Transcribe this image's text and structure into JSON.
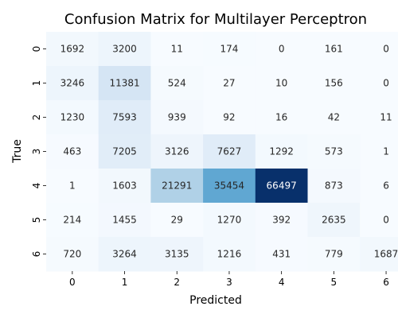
{
  "chart_data": {
    "type": "heatmap",
    "title": "Confusion Matrix for Multilayer Perceptron",
    "xlabel": "Predicted",
    "ylabel": "True",
    "x_categories": [
      "0",
      "1",
      "2",
      "3",
      "4",
      "5",
      "6"
    ],
    "y_categories": [
      "0",
      "1",
      "2",
      "3",
      "4",
      "5",
      "6"
    ],
    "values": [
      [
        1692,
        3200,
        11,
        174,
        0,
        161,
        0
      ],
      [
        3246,
        11381,
        524,
        27,
        10,
        156,
        0
      ],
      [
        1230,
        7593,
        939,
        92,
        16,
        42,
        11
      ],
      [
        463,
        7205,
        3126,
        7627,
        1292,
        573,
        1
      ],
      [
        1,
        1603,
        21291,
        35454,
        66497,
        873,
        6
      ],
      [
        214,
        1455,
        29,
        1270,
        392,
        2635,
        0
      ],
      [
        720,
        3264,
        3135,
        1216,
        431,
        779,
        1687
      ]
    ],
    "colormap": "Blues",
    "colorbar": false,
    "grid": false
  }
}
